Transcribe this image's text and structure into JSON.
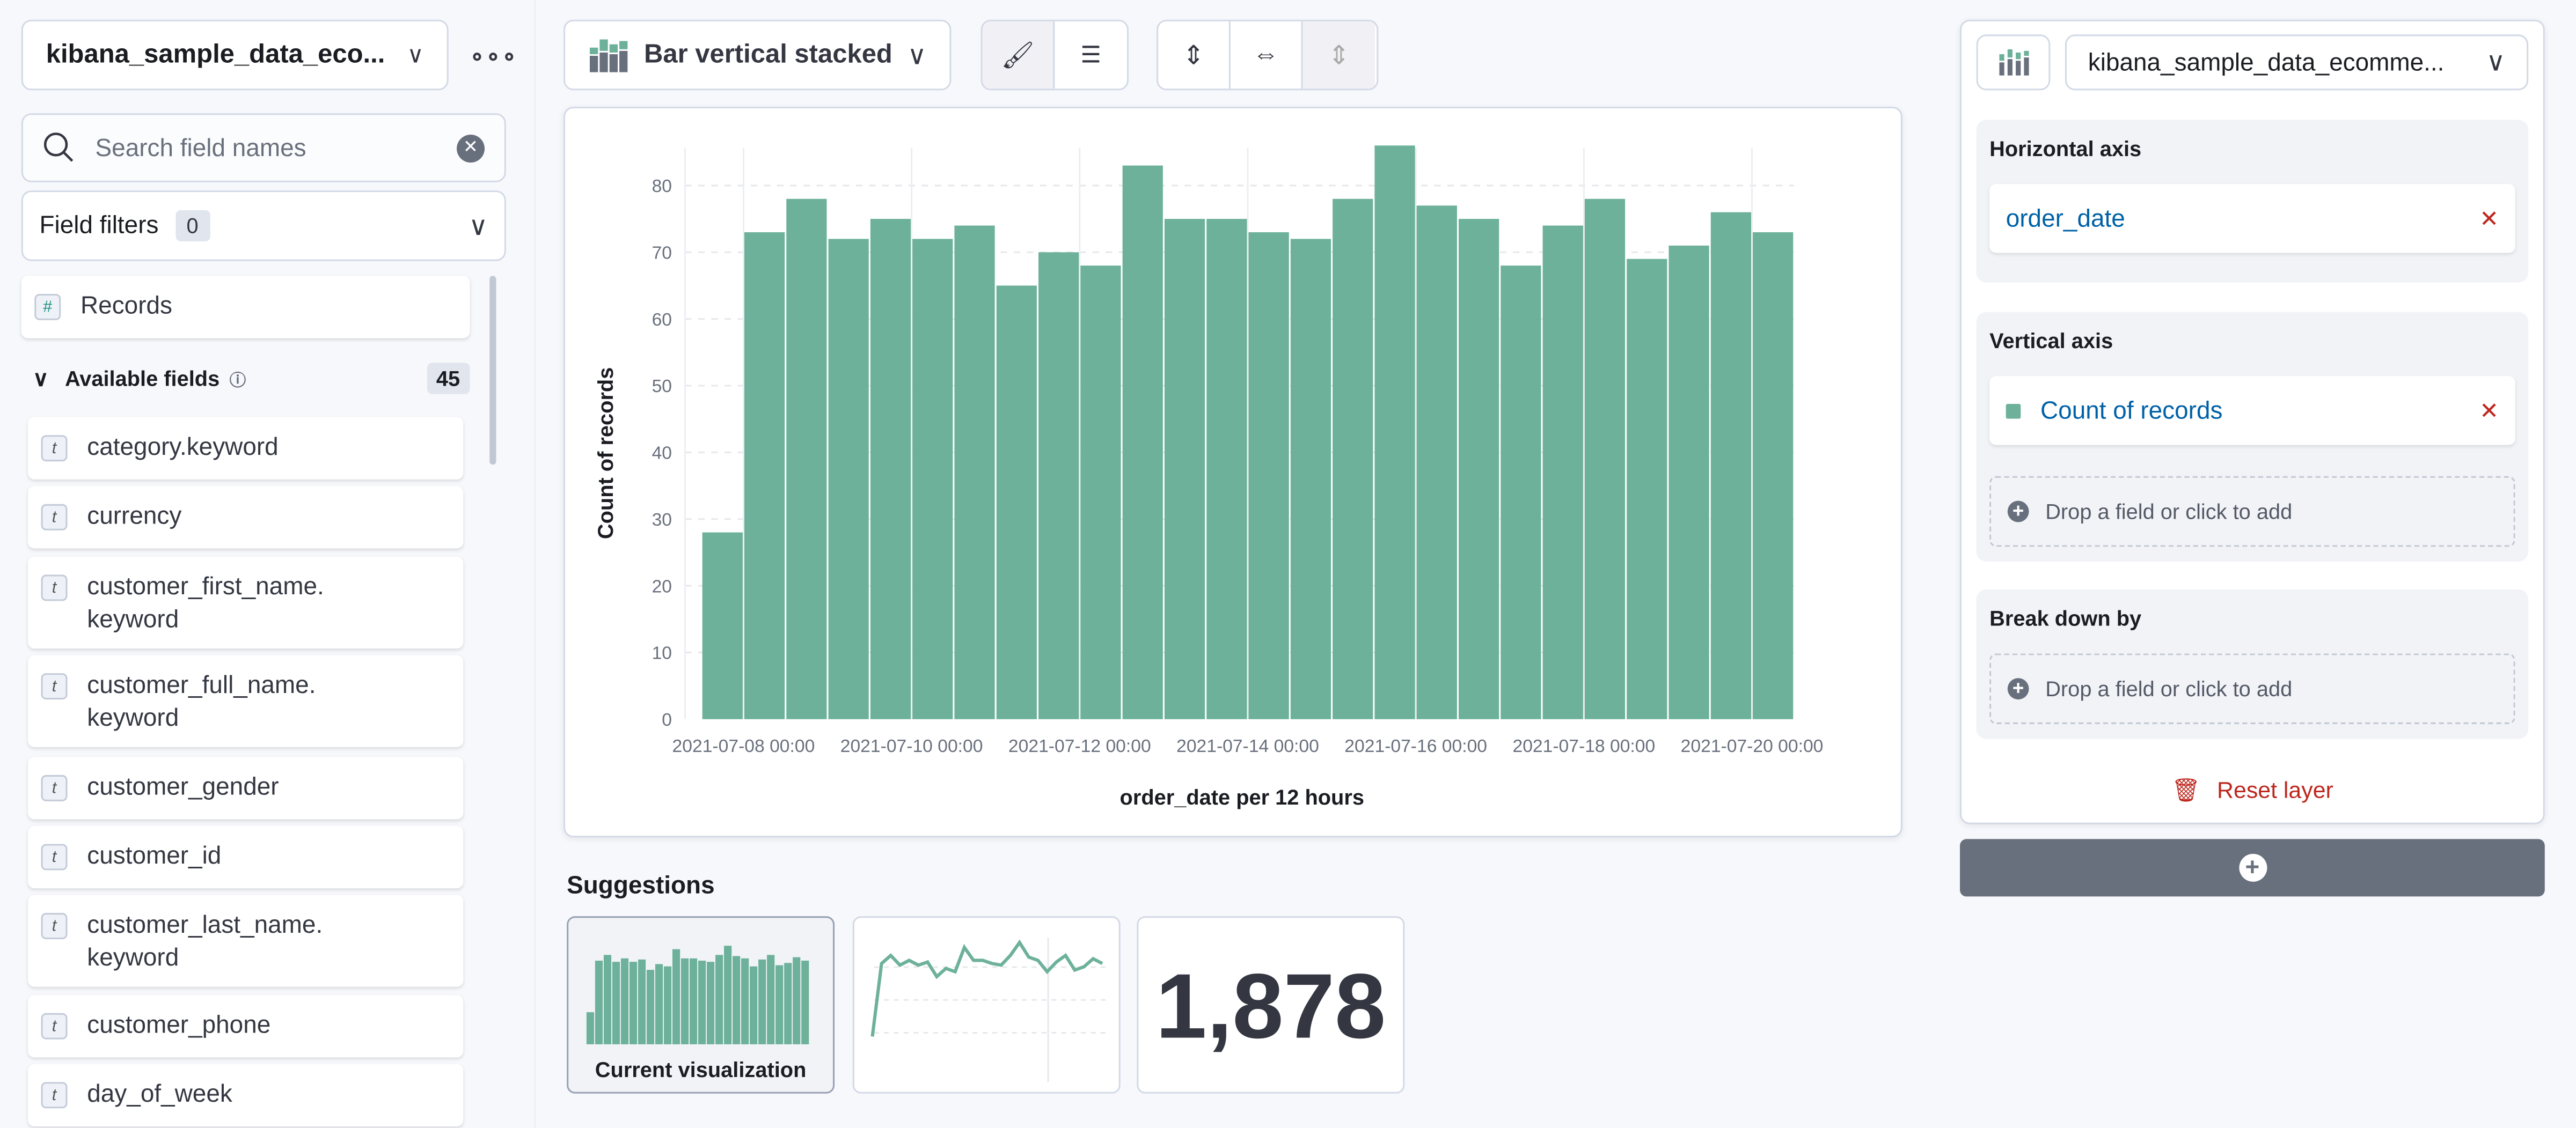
{
  "left": {
    "index_pattern": "kibana_sample_data_eco...",
    "search_placeholder": "Search field names",
    "field_filters_label": "Field filters",
    "field_filters_count": "0",
    "records_label": "Records",
    "available_label": "Available fields",
    "available_count": "45",
    "fields": [
      "category.keyword",
      "currency",
      "customer_first_name.\nkeyword",
      "customer_full_name.\nkeyword",
      "customer_gender",
      "customer_id",
      "customer_last_name.\nkeyword",
      "customer_phone",
      "day_of_week"
    ]
  },
  "toolbar": {
    "chart_type": "Bar vertical stacked"
  },
  "suggestions": {
    "title": "Suggestions",
    "current_label": "Current visualization",
    "metric_value": "1,878"
  },
  "right": {
    "index_pattern": "kibana_sample_data_ecomme...",
    "horizontal_axis": "Horizontal axis",
    "h_field": "order_date",
    "vertical_axis": "Vertical axis",
    "v_field": "Count of records",
    "drop_text": "Drop a field or click to add",
    "break_down": "Break down by",
    "reset": "Reset layer"
  },
  "colors": {
    "bar": "#6db19a",
    "accent": "#0061a6",
    "danger": "#bd271e"
  },
  "chart_data": {
    "type": "bar",
    "xlabel": "order_date per 12 hours",
    "ylabel": "Count of records",
    "ylim": [
      0,
      86
    ],
    "yticks": [
      0,
      10,
      20,
      30,
      40,
      50,
      60,
      70,
      80
    ],
    "xticks": [
      "2021-07-08 00:00",
      "2021-07-10 00:00",
      "2021-07-12 00:00",
      "2021-07-14 00:00",
      "2021-07-16 00:00",
      "2021-07-18 00:00",
      "2021-07-20 00:00"
    ],
    "x": [
      "2021-07-07 12:00",
      "2021-07-08 00:00",
      "2021-07-08 12:00",
      "2021-07-09 00:00",
      "2021-07-09 12:00",
      "2021-07-10 00:00",
      "2021-07-10 12:00",
      "2021-07-11 00:00",
      "2021-07-11 12:00",
      "2021-07-12 00:00",
      "2021-07-12 12:00",
      "2021-07-13 00:00",
      "2021-07-13 12:00",
      "2021-07-14 00:00",
      "2021-07-14 12:00",
      "2021-07-15 00:00",
      "2021-07-15 12:00",
      "2021-07-16 00:00",
      "2021-07-16 12:00",
      "2021-07-17 00:00",
      "2021-07-17 12:00",
      "2021-07-18 00:00",
      "2021-07-18 12:00",
      "2021-07-19 00:00",
      "2021-07-19 12:00",
      "2021-07-20 00:00"
    ],
    "values": [
      28,
      73,
      78,
      72,
      75,
      72,
      74,
      65,
      70,
      68,
      83,
      75,
      75,
      73,
      72,
      78,
      86,
      77,
      75,
      68,
      74,
      78,
      69,
      71,
      76,
      73
    ],
    "grid": true,
    "legend": "none"
  }
}
